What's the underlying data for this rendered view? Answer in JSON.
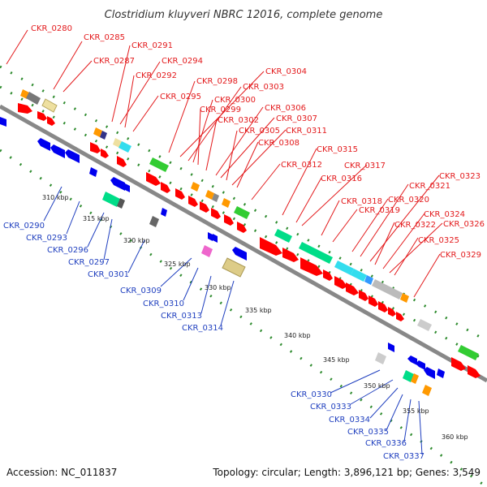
{
  "title": "Clostridium kluyveri NBRC 12016, complete genome",
  "footer": {
    "accession": "Accession: NC_011837",
    "stats": "Topology: circular; Length: 3,896,121 bp; Genes: 3,549"
  },
  "colors": {
    "forward_label": "#e31a1c",
    "reverse_label": "#1f3fbf",
    "forward_arrow": "#ff0000",
    "reverse_arrow": "#0000ee",
    "track_dots": "#2e8b2e",
    "backbone": "#888888"
  },
  "kbp_labels": [
    "310 kbp",
    "315 kbp",
    "320 kbp",
    "325 kbp",
    "330 kbp",
    "335 kbp",
    "340 kbp",
    "345 kbp",
    "350 kbp",
    "355 kbp",
    "360 kbp"
  ],
  "forward_genes": [
    "CKR_0280",
    "CKR_0285",
    "CKR_0287",
    "CKR_0291",
    "CKR_0294",
    "CKR_0292",
    "CKR_0295",
    "CKR_0298",
    "CKR_0304",
    "CKR_0303",
    "CKR_0300",
    "CKR_0299",
    "CKR_0302",
    "CKR_0306",
    "CKR_0307",
    "CKR_0305",
    "CKR_0311",
    "CKR_0308",
    "CKR_0312",
    "CKR_0315",
    "CKR_0316",
    "CKR_0317",
    "CKR_0318",
    "CKR_0319",
    "CKR_0320",
    "CKR_0321",
    "CKR_0323",
    "CKR_0322",
    "CKR_0324",
    "CKR_0326",
    "CKR_0325",
    "CKR_0329"
  ],
  "reverse_genes": [
    "CKR_0290",
    "CKR_0293",
    "CKR_0296",
    "CKR_0297",
    "CKR_0301",
    "CKR_0309",
    "CKR_0310",
    "CKR_0313",
    "CKR_0314",
    "CKR_0330",
    "CKR_0333",
    "CKR_0334",
    "CKR_0335",
    "CKR_0336",
    "CKR_0337"
  ]
}
